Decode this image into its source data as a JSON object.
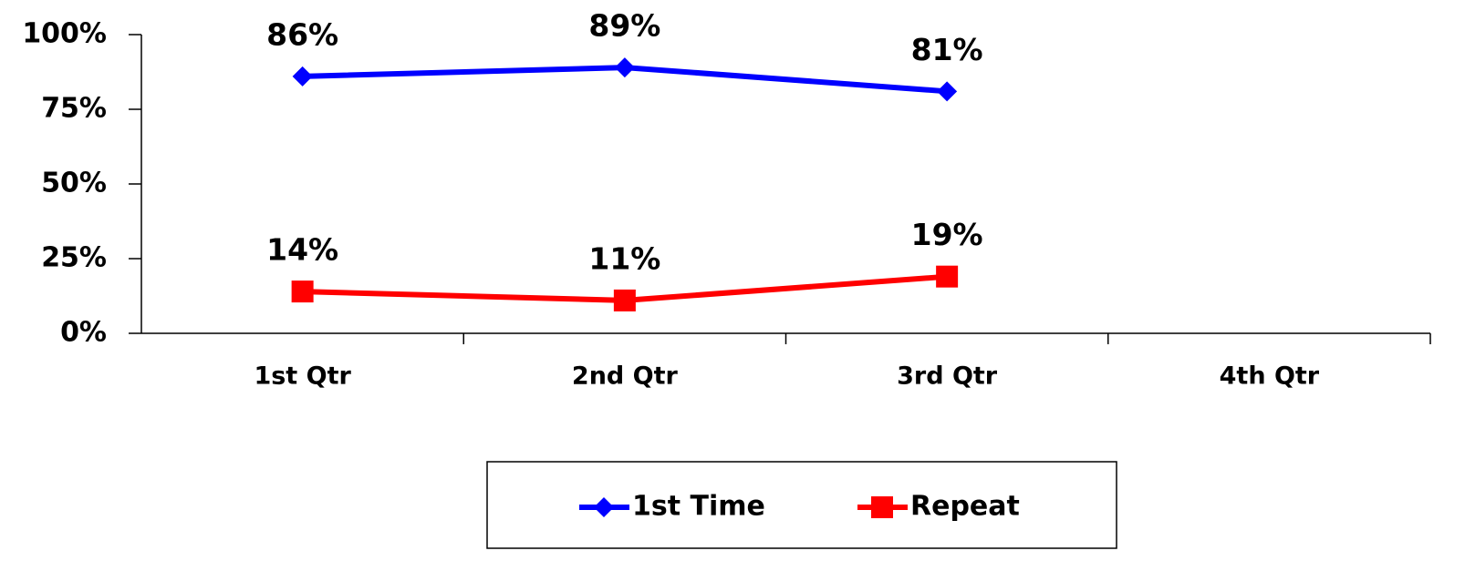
{
  "chart_data": {
    "type": "line",
    "categories": [
      "1st Qtr",
      "2nd Qtr",
      "3rd Qtr",
      "4th Qtr"
    ],
    "series": [
      {
        "name": "1st Time",
        "color": "#0000ff",
        "marker": "diamond",
        "values": [
          86,
          89,
          81,
          null
        ],
        "value_labels": [
          "86%",
          "89%",
          "81%",
          null
        ]
      },
      {
        "name": "Repeat",
        "color": "#ff0000",
        "marker": "square",
        "values": [
          14,
          11,
          19,
          null
        ],
        "value_labels": [
          "14%",
          "11%",
          "19%",
          null
        ]
      }
    ],
    "ylim": [
      0,
      100
    ],
    "yticks": [
      {
        "value": 0,
        "label": "0%"
      },
      {
        "value": 25,
        "label": "25%"
      },
      {
        "value": 50,
        "label": "50%"
      },
      {
        "value": 75,
        "label": "75%"
      },
      {
        "value": 100,
        "label": "100%"
      }
    ],
    "grid": false,
    "legend": "bottom"
  }
}
